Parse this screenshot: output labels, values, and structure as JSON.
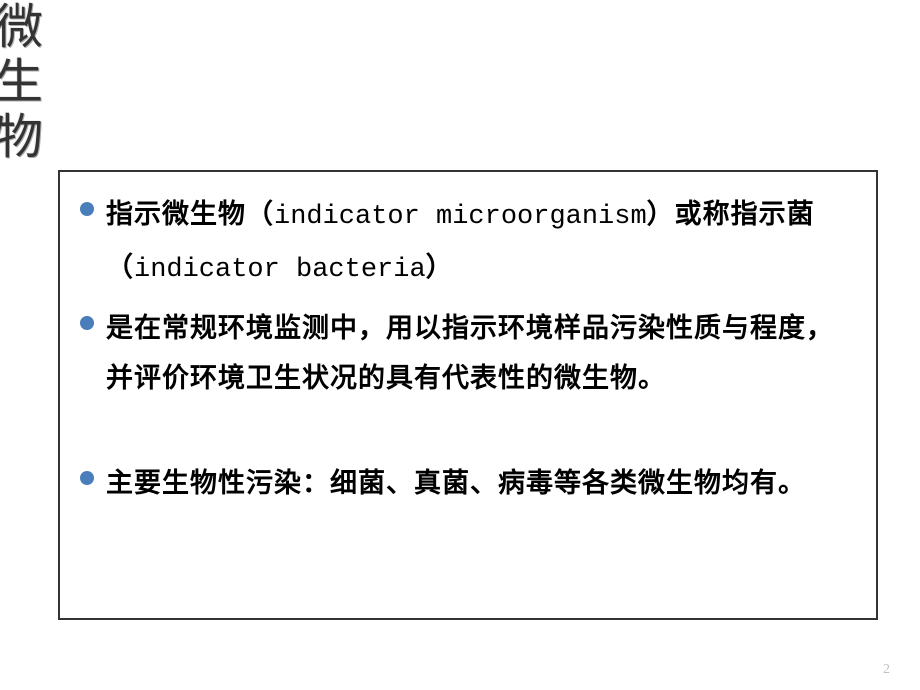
{
  "sideTitle": {
    "chars": [
      "微",
      "生",
      "物"
    ]
  },
  "content": {
    "bullets": [
      {
        "prefix": "指示微生物（",
        "latin1": "indicator microorganism",
        "mid": "）或称指示菌（",
        "latin2": "indicator bacteria",
        "suffix": "）",
        "gapAfter": false
      },
      {
        "text": "是在常规环境监测中，用以指示环境样品污染性质与程度，并评价环境卫生状况的具有代表性的微生物。",
        "gapAfter": true
      },
      {
        "text": "主要生物性污染：细菌、真菌、病毒等各类微生物均有。",
        "gapAfter": false
      }
    ]
  },
  "pageNumber": "2",
  "colors": {
    "bulletDot": "#4a7ebb",
    "border": "#333333",
    "text": "#000000",
    "pageNum": "#c0c0c0"
  }
}
